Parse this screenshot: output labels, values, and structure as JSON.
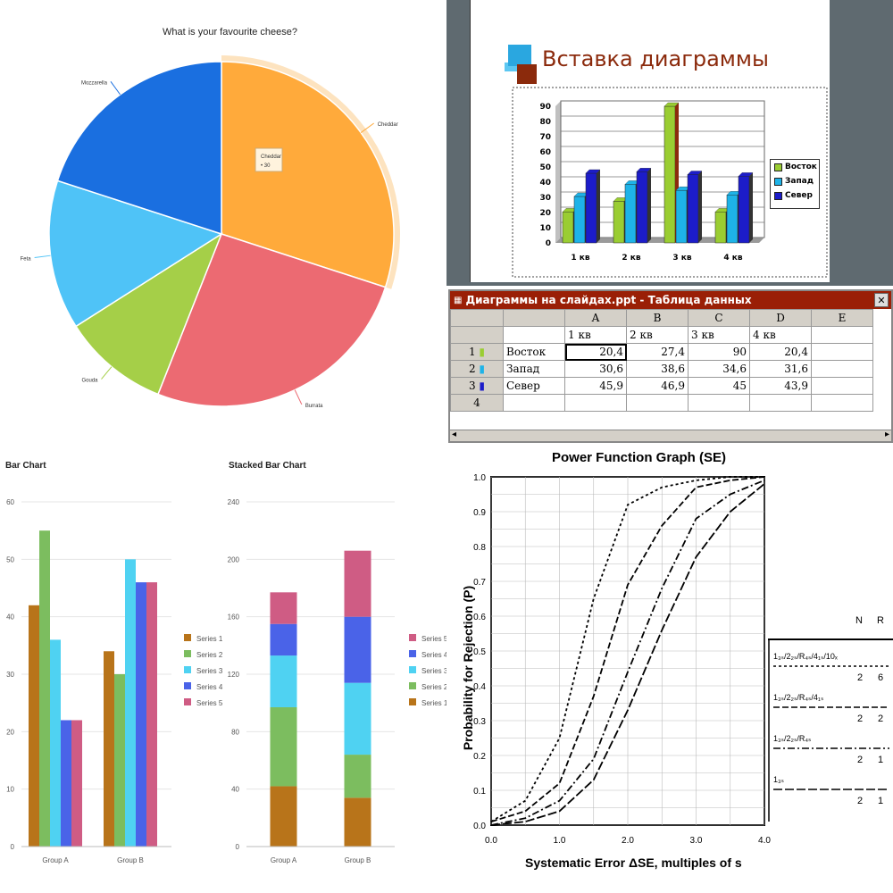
{
  "chart_data": [
    {
      "type": "pie",
      "title": "What is your favourite cheese?",
      "categories": [
        "Cheddar",
        "Burrata",
        "Gouda",
        "Feta",
        "Mozzarella"
      ],
      "values": [
        30,
        26,
        10,
        14,
        20
      ],
      "colors": [
        "#ffaa3b",
        "#ec6a72",
        "#a5cf48",
        "#4fc3f7",
        "#1a6fe0"
      ],
      "tooltip": {
        "label": "Cheddar",
        "value": "30"
      }
    },
    {
      "type": "bar",
      "title": "Вставка диаграммы",
      "categories": [
        "1 кв",
        "2 кв",
        "3 кв",
        "4 кв"
      ],
      "series": [
        {
          "name": "Восток",
          "values": [
            20.4,
            27.4,
            90,
            20.4
          ],
          "color": "#9acd32"
        },
        {
          "name": "Запад",
          "values": [
            30.6,
            38.6,
            34.6,
            31.6
          ],
          "color": "#1eb3e8"
        },
        {
          "name": "Север",
          "values": [
            45.9,
            46.9,
            45,
            43.9
          ],
          "color": "#1c1cc9"
        }
      ],
      "ylim": [
        0,
        90
      ],
      "yticks": [
        "0",
        "10",
        "20",
        "30",
        "40",
        "50",
        "60",
        "70",
        "80",
        "90"
      ],
      "legend": "right"
    },
    {
      "type": "table",
      "title": "Диаграммы на слайдах.ppt - Таблица данных",
      "columns": [
        "A",
        "B",
        "C",
        "D",
        "E"
      ],
      "header_row": [
        "1 кв",
        "2 кв",
        "3 кв",
        "4 кв",
        ""
      ],
      "rows": [
        {
          "n": "1",
          "name": "Восток",
          "values": [
            "20,4",
            "27,4",
            "90",
            "20,4"
          ]
        },
        {
          "n": "2",
          "name": "Запад",
          "values": [
            "30,6",
            "38,6",
            "34,6",
            "31,6"
          ]
        },
        {
          "n": "3",
          "name": "Север",
          "values": [
            "45,9",
            "46,9",
            "45",
            "43,9"
          ]
        },
        {
          "n": "4",
          "name": "",
          "values": [
            "",
            "",
            "",
            ""
          ]
        }
      ]
    },
    {
      "type": "bar",
      "title": "Bar Chart",
      "categories": [
        "Group A",
        "Group B"
      ],
      "series": [
        {
          "name": "Series 1",
          "values": [
            42,
            34
          ],
          "color": "#b8741a"
        },
        {
          "name": "Series 2",
          "values": [
            55,
            30
          ],
          "color": "#7cbd5f"
        },
        {
          "name": "Series 3",
          "values": [
            36,
            50
          ],
          "color": "#4fd2f2"
        },
        {
          "name": "Series 4",
          "values": [
            22,
            46
          ],
          "color": "#4a63e8"
        },
        {
          "name": "Series 5",
          "values": [
            22,
            46
          ],
          "color": "#cf5c84"
        }
      ],
      "ylim": [
        0,
        60
      ],
      "yticks": [
        "0",
        "10",
        "20",
        "30",
        "40",
        "50",
        "60"
      ],
      "legend": "right"
    },
    {
      "type": "bar",
      "title": "Stacked Bar Chart",
      "categories": [
        "Group A",
        "Group B"
      ],
      "series": [
        {
          "name": "Series 1",
          "values": [
            42,
            34
          ],
          "color": "#b8741a"
        },
        {
          "name": "Series 2",
          "values": [
            55,
            30
          ],
          "color": "#7cbd5f"
        },
        {
          "name": "Series 3",
          "values": [
            36,
            50
          ],
          "color": "#4fd2f2"
        },
        {
          "name": "Series 4",
          "values": [
            22,
            46
          ],
          "color": "#4a63e8"
        },
        {
          "name": "Series 5",
          "values": [
            22,
            46
          ],
          "color": "#cf5c84"
        }
      ],
      "ylim": [
        0,
        240
      ],
      "yticks": [
        "0",
        "40",
        "80",
        "120",
        "160",
        "200",
        "240"
      ],
      "legend": "right"
    },
    {
      "type": "line",
      "title": "Power Function Graph  (SE)",
      "xlabel": "Systematic Error ΔSE, multiples of s",
      "ylabel": "Probability for Rejection (P)",
      "xlim": [
        0,
        4
      ],
      "ylim": [
        0,
        1
      ],
      "xticks": [
        "0.0",
        "1.0",
        "2.0",
        "3.0",
        "4.0"
      ],
      "yticks": [
        "0.0",
        "0.1",
        "0.2",
        "0.3",
        "0.4",
        "0.5",
        "0.6",
        "0.7",
        "0.8",
        "0.9",
        "1.0"
      ],
      "series": [
        {
          "x": [
            0,
            0.5,
            1.0,
            1.5,
            2.0,
            2.5,
            3.0,
            3.5,
            4.0
          ],
          "y": [
            0.01,
            0.07,
            0.25,
            0.65,
            0.92,
            0.97,
            0.99,
            1.0,
            1.0
          ]
        },
        {
          "x": [
            0,
            0.5,
            1.0,
            1.5,
            2.0,
            2.5,
            3.0,
            3.5,
            4.0
          ],
          "y": [
            0.01,
            0.04,
            0.12,
            0.37,
            0.69,
            0.86,
            0.97,
            0.99,
            1.0
          ]
        },
        {
          "x": [
            0,
            0.5,
            1.0,
            1.5,
            2.0,
            2.5,
            3.0,
            3.5,
            4.0
          ],
          "y": [
            0.0,
            0.02,
            0.07,
            0.19,
            0.44,
            0.68,
            0.88,
            0.95,
            0.99
          ]
        },
        {
          "x": [
            0,
            0.5,
            1.0,
            1.5,
            2.0,
            2.5,
            3.0,
            3.5,
            4.0
          ],
          "y": [
            0.0,
            0.01,
            0.04,
            0.13,
            0.33,
            0.56,
            0.77,
            0.9,
            0.98
          ]
        }
      ],
      "legend_headers": [
        "N",
        "R"
      ],
      "legend_rows": [
        {
          "rule": "1₃ₛ/2₂ₛ/R₄ₛ/4₁ₛ/10ₓ",
          "N": "2",
          "R": "6"
        },
        {
          "rule": "1₃ₛ/2₂ₛ/R₄ₛ/4₁ₛ",
          "N": "2",
          "R": "2"
        },
        {
          "rule": "1₃ₛ/2₂ₛ/R₄ₛ",
          "N": "2",
          "R": "1"
        },
        {
          "rule": "1₃ₛ",
          "N": "2",
          "R": "1"
        }
      ]
    }
  ]
}
